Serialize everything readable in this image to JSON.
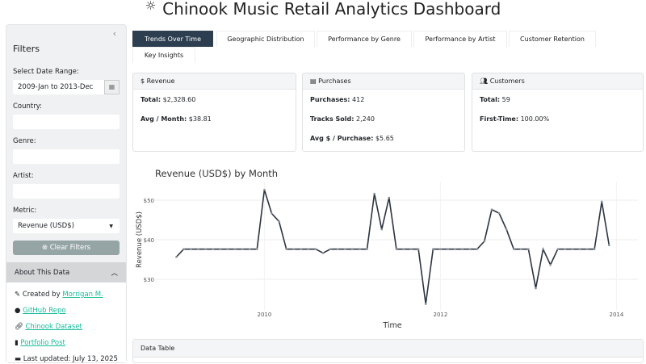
{
  "header": {
    "title": "Chinook Music Retail Analytics Dashboard",
    "icon": "sun-icon"
  },
  "sidebar": {
    "title": "Filters",
    "collapse_icon": "chevron-left-icon",
    "date_label": "Select Date Range:",
    "date_value": "2009-Jan to 2013-Dec",
    "country_label": "Country:",
    "country_value": "",
    "genre_label": "Genre:",
    "genre_value": "",
    "artist_label": "Artist:",
    "artist_value": "",
    "metric_label": "Metric:",
    "metric_value": "Revenue (USD$)",
    "clear_label": "Clear Filters",
    "about": {
      "title": "About This Data",
      "created_prefix": "Created by",
      "created_link": "Morrigan M.",
      "github": "GitHub Repo",
      "dataset": "Chinook Dataset",
      "portfolio": "Portfolio Post",
      "updated": "Last updated: July 13, 2025"
    }
  },
  "tabs": [
    "Trends Over Time",
    "Geographic Distribution",
    "Performance by Genre",
    "Performance by Artist",
    "Customer Retention",
    "Key Insights"
  ],
  "cards": {
    "revenue": {
      "title": "Revenue",
      "icon": "dollar-icon",
      "total_label": "Total:",
      "total": "$2,328.60",
      "avg_label": "Avg / Month:",
      "avg": "$38.81"
    },
    "purchases": {
      "title": "Purchases",
      "icon": "receipt-icon",
      "p_label": "Purchases:",
      "p": "412",
      "t_label": "Tracks Sold:",
      "t": "2,240",
      "a_label": "Avg $ / Purchase:",
      "a": "$5.65"
    },
    "customers": {
      "title": "Customers",
      "icon": "users-icon",
      "total_label": "Total:",
      "total": "59",
      "ft_label": "First-Time:",
      "ft": "100.00%"
    }
  },
  "data_table": {
    "title": "Data Table"
  },
  "chart_data": {
    "type": "line",
    "title": "Revenue (USD$) by Month",
    "xlabel": "Time",
    "ylabel": "Revenue (USD$)",
    "start": "2009-01",
    "x_ticks": [
      "2010",
      "2012",
      "2014"
    ],
    "y_ticks": [
      "$30",
      "$40",
      "$50"
    ],
    "y_tick_values": [
      30,
      40,
      50
    ],
    "grid": true,
    "values": [
      35.64,
      37.62,
      37.62,
      37.62,
      37.62,
      37.62,
      37.62,
      37.62,
      37.62,
      37.62,
      37.62,
      37.62,
      52.62,
      46.62,
      44.62,
      37.62,
      37.62,
      37.62,
      37.62,
      37.62,
      36.63,
      37.62,
      37.62,
      37.62,
      37.62,
      37.62,
      37.62,
      51.62,
      42.62,
      50.62,
      37.62,
      37.62,
      37.62,
      37.62,
      23.76,
      37.62,
      37.62,
      37.62,
      37.62,
      37.62,
      37.62,
      37.62,
      39.62,
      47.62,
      46.71,
      42.62,
      37.62,
      37.62,
      37.62,
      27.72,
      37.62,
      33.66,
      37.62,
      37.62,
      37.62,
      37.62,
      37.62,
      37.62,
      49.62,
      38.62
    ]
  }
}
